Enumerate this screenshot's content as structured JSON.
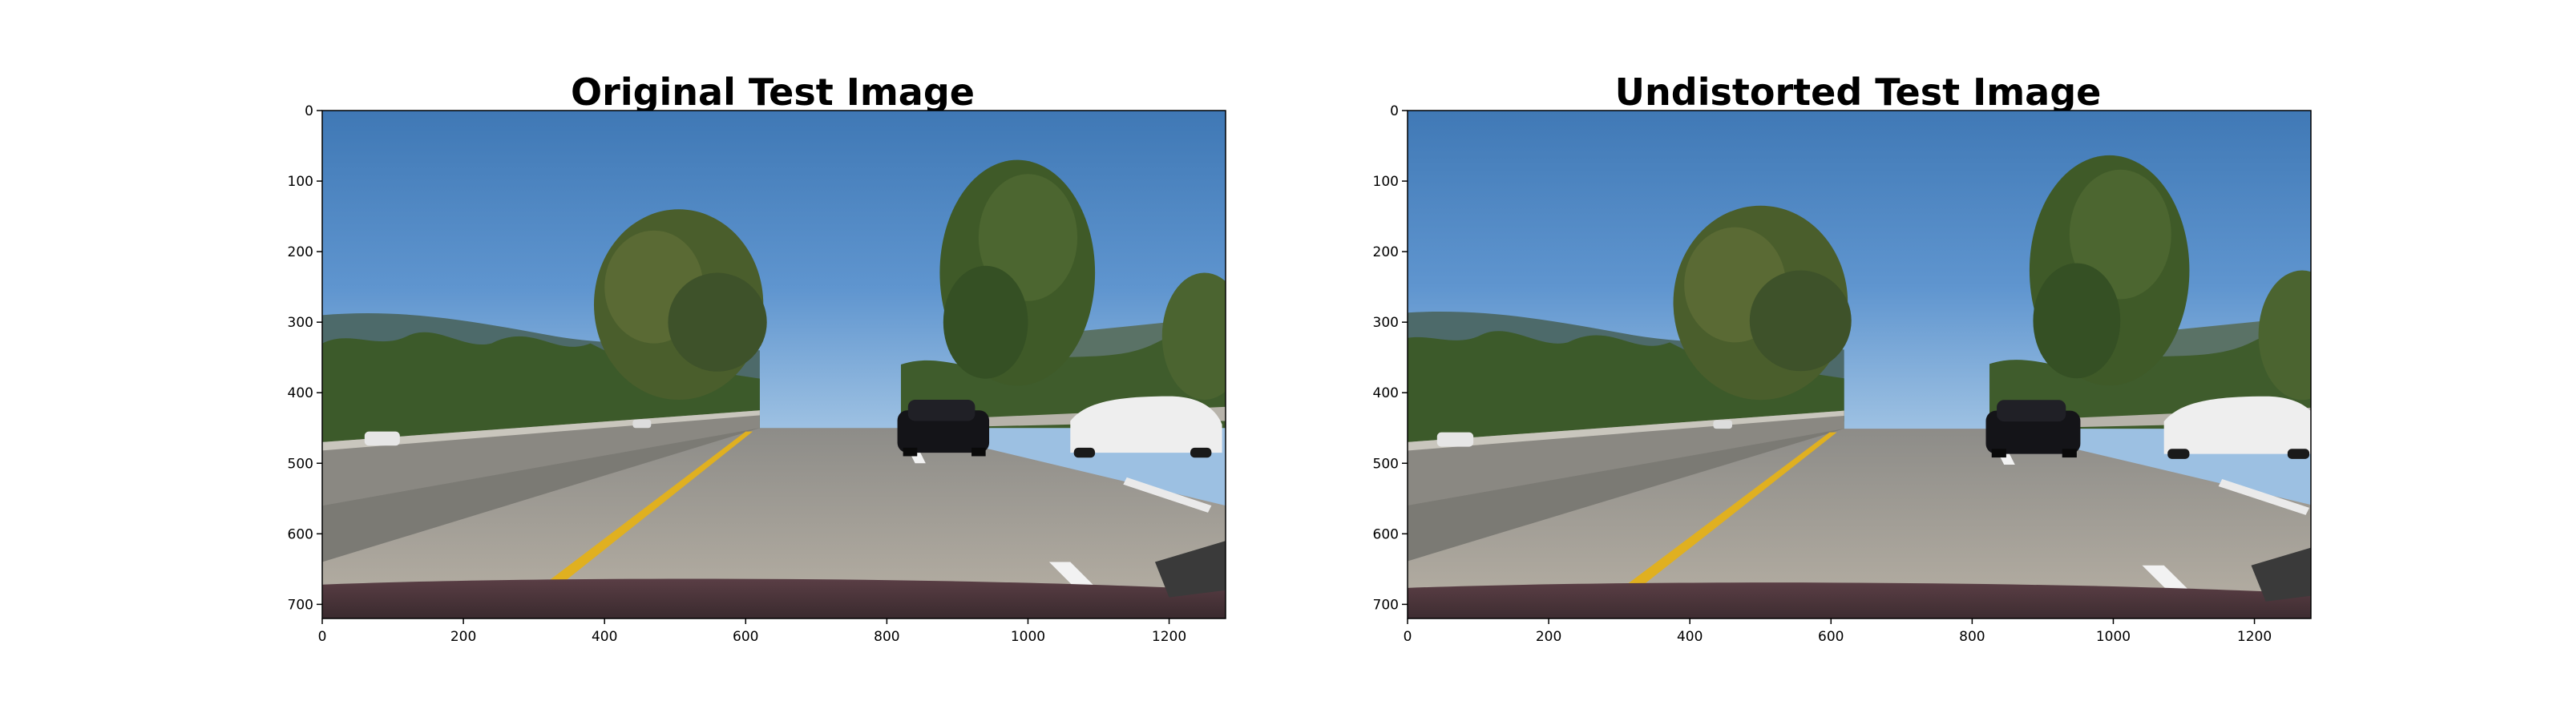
{
  "figure": {
    "panels": [
      {
        "title": "Original Test Image",
        "x_ticks": [
          "0",
          "200",
          "400",
          "600",
          "800",
          "1000",
          "1200"
        ],
        "x_tick_values": [
          0,
          200,
          400,
          600,
          800,
          1000,
          1200
        ],
        "y_ticks": [
          "0",
          "100",
          "200",
          "300",
          "400",
          "500",
          "600",
          "700"
        ],
        "y_tick_values": [
          0,
          100,
          200,
          300,
          400,
          500,
          600,
          700
        ],
        "x_range": [
          0,
          1280
        ],
        "y_range": [
          0,
          720
        ],
        "image_description_icon": "road-scene-photo"
      },
      {
        "title": "Undistorted Test Image",
        "x_ticks": [
          "0",
          "200",
          "400",
          "600",
          "800",
          "1000",
          "1200"
        ],
        "x_tick_values": [
          0,
          200,
          400,
          600,
          800,
          1000,
          1200
        ],
        "y_ticks": [
          "0",
          "100",
          "200",
          "300",
          "400",
          "500",
          "600",
          "700"
        ],
        "y_tick_values": [
          0,
          100,
          200,
          300,
          400,
          500,
          600,
          700
        ],
        "x_range": [
          0,
          1280
        ],
        "y_range": [
          0,
          720
        ],
        "image_description_icon": "road-scene-photo"
      }
    ]
  }
}
